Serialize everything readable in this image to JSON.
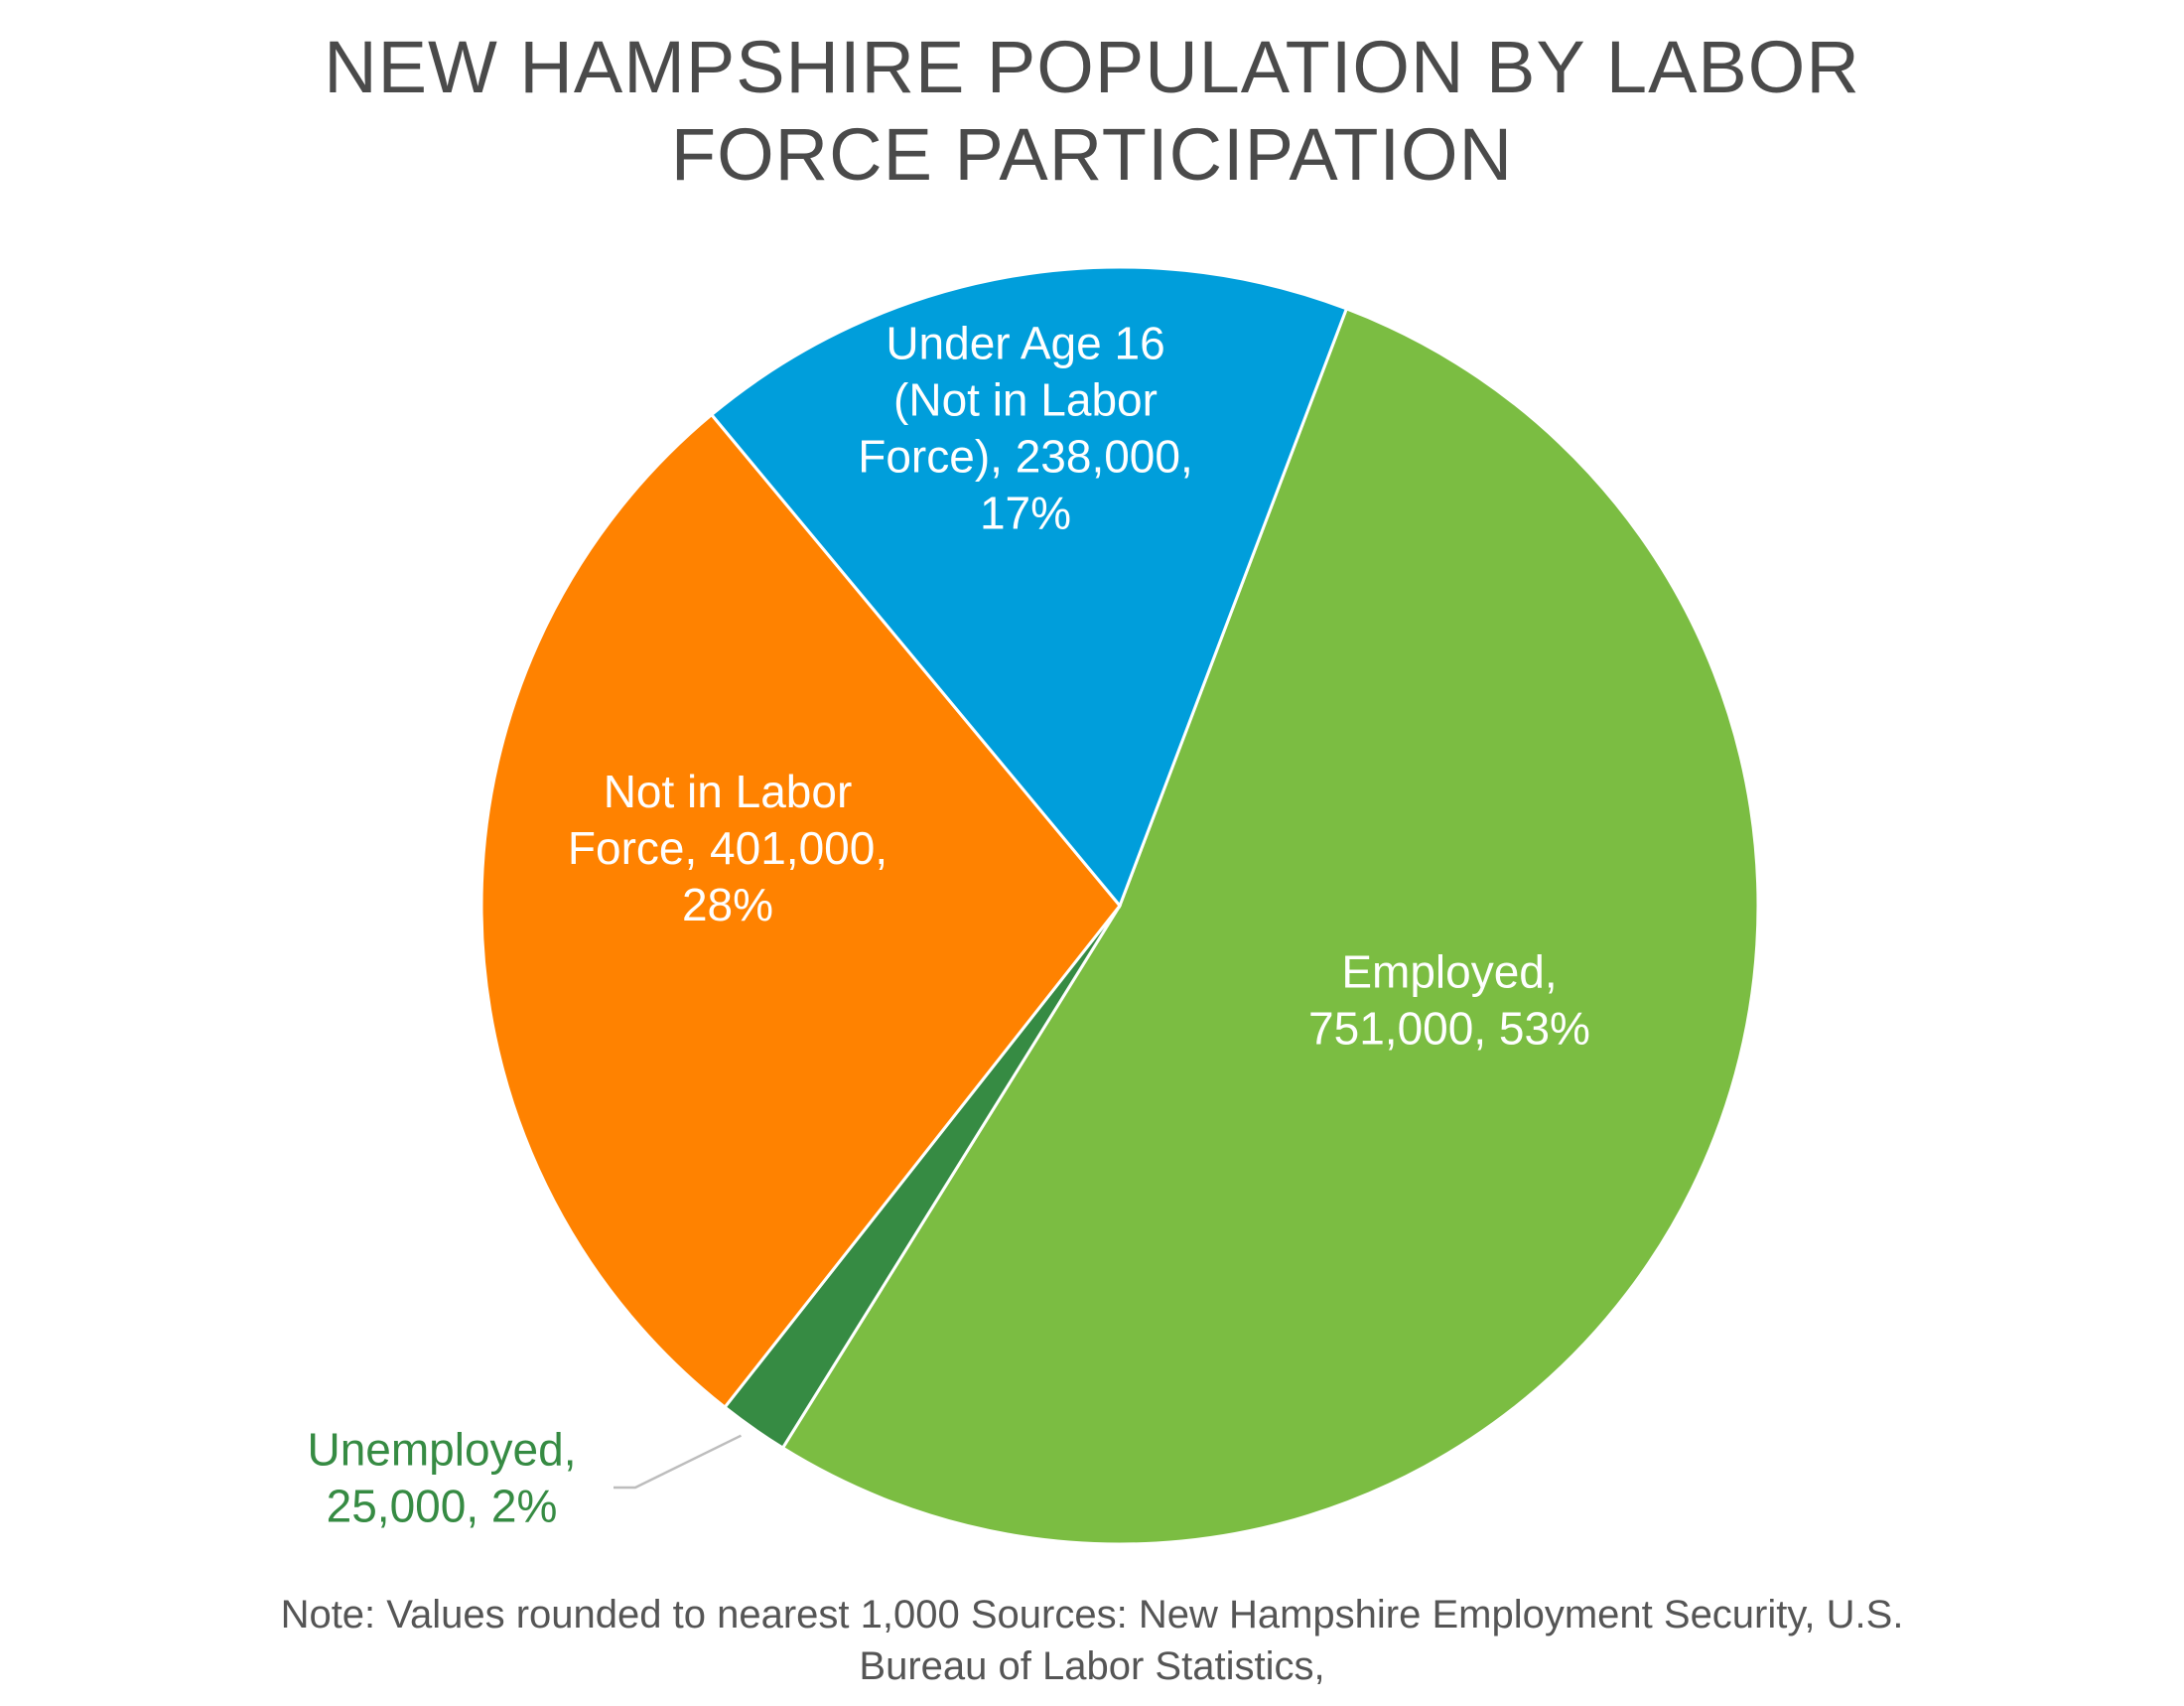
{
  "chart_data": {
    "type": "pie",
    "title": "NEW HAMPSHIRE POPULATION BY LABOR FORCE PARTICIPATION",
    "title_lines": [
      "NEW HAMPSHIRE POPULATION BY LABOR",
      "FORCE PARTICIPATION"
    ],
    "slices": [
      {
        "name": "Employed",
        "value": 751000,
        "percent": 53,
        "color": "#7bbd42",
        "label_lines": [
          "Employed,",
          "751,000, 53%"
        ],
        "label_color": "#ffffff"
      },
      {
        "name": "Unemployed",
        "value": 25000,
        "percent": 2,
        "color": "#368b43",
        "label_lines": [
          "Unemployed,",
          "25,000, 2%"
        ],
        "label_color": "#368b43"
      },
      {
        "name": "Not in Labor Force",
        "value": 401000,
        "percent": 28,
        "color": "#ff8200",
        "label_lines": [
          "Not in Labor",
          "Force, 401,000,",
          "28%"
        ],
        "label_color": "#ffffff"
      },
      {
        "name": "Under Age 16 (Not in Labor Force)",
        "value": 238000,
        "percent": 17,
        "color": "#009edb",
        "label_lines": [
          "Under Age 16",
          "(Not in Labor",
          "Force), 238,000,",
          "17%"
        ],
        "label_color": "#ffffff"
      }
    ],
    "note_lines": [
      "Note: Values rounded to nearest 1,000 Sources: New Hampshire Employment Security, U.S.",
      "Bureau of Labor Statistics,"
    ]
  }
}
